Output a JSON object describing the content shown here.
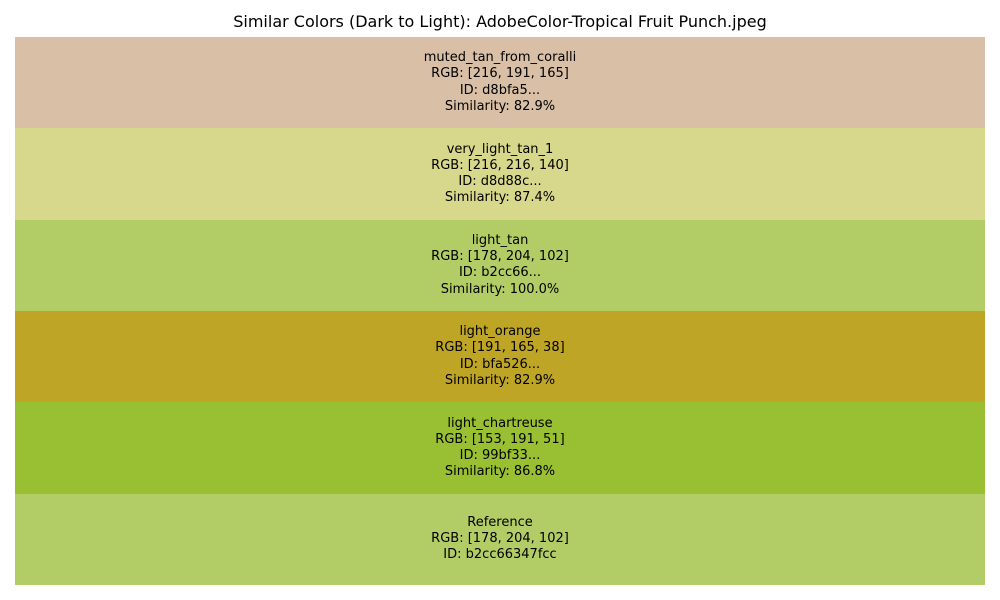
{
  "chart_data": {
    "type": "table",
    "title": "Similar Colors (Dark to Light): AdobeColor-Tropical Fruit Punch.jpeg",
    "rows": [
      {
        "name": "muted_tan_from_coralli",
        "rgb": "RGB: [216, 191, 165]",
        "id": "ID: d8bfa5...",
        "similarity": "Similarity: 82.9%",
        "color": "#d8bfa5"
      },
      {
        "name": "very_light_tan_1",
        "rgb": "RGB: [216, 216, 140]",
        "id": "ID: d8d88c...",
        "similarity": "Similarity: 87.4%",
        "color": "#d8d88c"
      },
      {
        "name": "light_tan",
        "rgb": "RGB: [178, 204, 102]",
        "id": "ID: b2cc66...",
        "similarity": "Similarity: 100.0%",
        "color": "#b2cc66"
      },
      {
        "name": "light_orange",
        "rgb": "RGB: [191, 165, 38]",
        "id": "ID: bfa526...",
        "similarity": "Similarity: 82.9%",
        "color": "#bfa526"
      },
      {
        "name": "light_chartreuse",
        "rgb": "RGB: [153, 191, 51]",
        "id": "ID: 99bf33...",
        "similarity": "Similarity: 86.8%",
        "color": "#99bf33"
      },
      {
        "name": "Reference",
        "rgb": "RGB: [178, 204, 102]",
        "id": "ID: b2cc66347fcc",
        "color": "#b2cc66"
      }
    ]
  }
}
